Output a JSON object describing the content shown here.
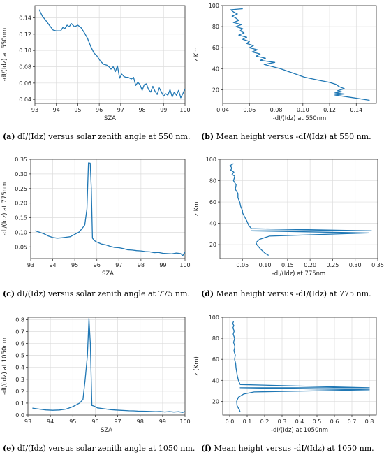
{
  "figure": {
    "captions": [
      {
        "letter": "(a)",
        "text": " dI/(Idz) versus solar zenith angle at 550 nm."
      },
      {
        "letter": "(b)",
        "text": " Mean height versus -dI/(Idz) at 550 nm."
      },
      {
        "letter": "(c)",
        "text": " dI/(Idz) versus solar zenith angle at 775 nm."
      },
      {
        "letter": "(d)",
        "text": " Mean height versus -dI/(Idz) at 775 nm."
      },
      {
        "letter": "(e)",
        "text": " dI/(Idz) versus solar zenith angle at 1050 nm."
      },
      {
        "letter": "(f)",
        "text": " Mean height versus -dI/(Idz) at 1050 nm."
      }
    ],
    "line_color": "#1f77b4"
  },
  "chart_data": [
    {
      "type": "line",
      "xlabel": "SZA",
      "ylabel": "-dI/(Idz) at 550nm",
      "xlim": [
        93,
        100
      ],
      "ylim": [
        0.035,
        0.155
      ],
      "xticks": [
        93,
        94,
        95,
        96,
        97,
        98,
        99,
        100
      ],
      "yticks": [
        0.04,
        0.06,
        0.08,
        0.1,
        0.12,
        0.14
      ],
      "ytick_labels": [
        "0.04",
        "0.06",
        "0.08",
        "0.10",
        "0.12",
        "0.14"
      ],
      "grid": true,
      "series": [
        {
          "x": [
            93.2,
            93.35,
            93.5,
            93.7,
            93.85,
            94.0,
            94.2,
            94.3,
            94.4,
            94.5,
            94.6,
            94.7,
            94.85,
            95.0,
            95.15,
            95.3,
            95.45,
            95.6,
            95.75,
            95.9,
            96.05,
            96.2,
            96.35,
            96.45,
            96.55,
            96.65,
            96.75,
            96.85,
            96.95,
            97.05,
            97.15,
            97.25,
            97.35,
            97.5,
            97.6,
            97.7,
            97.8,
            97.9,
            98.0,
            98.1,
            98.2,
            98.3,
            98.4,
            98.5,
            98.6,
            98.7,
            98.8,
            98.9,
            99.0,
            99.1,
            99.2,
            99.3,
            99.4,
            99.5,
            99.6,
            99.7,
            99.8,
            99.9,
            100.0
          ],
          "y": [
            0.15,
            0.142,
            0.137,
            0.13,
            0.125,
            0.124,
            0.124,
            0.128,
            0.127,
            0.131,
            0.129,
            0.133,
            0.129,
            0.131,
            0.128,
            0.122,
            0.115,
            0.105,
            0.097,
            0.093,
            0.087,
            0.083,
            0.082,
            0.08,
            0.077,
            0.08,
            0.074,
            0.081,
            0.066,
            0.071,
            0.068,
            0.067,
            0.067,
            0.065,
            0.067,
            0.057,
            0.061,
            0.058,
            0.051,
            0.058,
            0.059,
            0.052,
            0.049,
            0.056,
            0.05,
            0.046,
            0.054,
            0.049,
            0.044,
            0.047,
            0.045,
            0.052,
            0.043,
            0.049,
            0.045,
            0.051,
            0.042,
            0.047,
            0.053
          ]
        }
      ]
    },
    {
      "type": "line",
      "xlabel": "-dI/(Idz) at 550nm",
      "ylabel": "z Km",
      "xlim": [
        0.04,
        0.155
      ],
      "ylim": [
        7,
        100
      ],
      "xticks": [
        0.04,
        0.06,
        0.08,
        0.1,
        0.12,
        0.14
      ],
      "xtick_labels": [
        "0.04",
        "0.06",
        "0.08",
        "0.10",
        "0.12",
        "0.14"
      ],
      "yticks": [
        20,
        40,
        60,
        80,
        100
      ],
      "grid": true,
      "series": [
        {
          "x": [
            0.055,
            0.046,
            0.048,
            0.051,
            0.047,
            0.05,
            0.052,
            0.048,
            0.054,
            0.05,
            0.055,
            0.053,
            0.056,
            0.052,
            0.058,
            0.055,
            0.06,
            0.058,
            0.063,
            0.06,
            0.066,
            0.062,
            0.068,
            0.065,
            0.072,
            0.068,
            0.079,
            0.071,
            0.077,
            0.083,
            0.092,
            0.101,
            0.112,
            0.12,
            0.125,
            0.127,
            0.131,
            0.126,
            0.129,
            0.124,
            0.131,
            0.124,
            0.14,
            0.15
          ],
          "y": [
            97,
            96,
            94,
            92,
            90,
            88,
            86,
            84,
            82,
            80,
            78,
            76,
            74,
            72,
            70,
            68,
            66,
            64,
            62,
            60,
            58,
            56,
            54,
            52,
            50,
            48,
            46,
            44,
            42,
            40,
            36,
            32,
            29,
            27,
            25,
            23,
            21,
            19,
            18,
            17,
            16,
            15,
            12,
            10
          ]
        }
      ]
    },
    {
      "type": "line",
      "xlabel": "SZA",
      "ylabel": "-dI/(Idz) at 775nm",
      "xlim": [
        93,
        100
      ],
      "ylim": [
        0.01,
        0.35
      ],
      "xticks": [
        93,
        94,
        95,
        96,
        97,
        98,
        99,
        100
      ],
      "yticks": [
        0.05,
        0.1,
        0.15,
        0.2,
        0.25,
        0.3,
        0.35
      ],
      "ytick_labels": [
        "0.05",
        "0.10",
        "0.15",
        "0.20",
        "0.25",
        "0.30",
        "0.35"
      ],
      "grid": true,
      "series": [
        {
          "x": [
            93.2,
            93.4,
            93.6,
            93.8,
            94.0,
            94.2,
            94.4,
            94.6,
            94.8,
            95.0,
            95.2,
            95.35,
            95.45,
            95.55,
            95.62,
            95.7,
            95.75,
            95.8,
            95.85,
            95.95,
            96.05,
            96.2,
            96.4,
            96.6,
            96.8,
            97.0,
            97.2,
            97.4,
            97.6,
            97.8,
            98.0,
            98.2,
            98.4,
            98.6,
            98.8,
            99.0,
            99.2,
            99.4,
            99.6,
            99.8,
            99.9,
            100.0
          ],
          "y": [
            0.105,
            0.1,
            0.095,
            0.087,
            0.082,
            0.08,
            0.081,
            0.083,
            0.085,
            0.093,
            0.101,
            0.115,
            0.125,
            0.18,
            0.338,
            0.337,
            0.25,
            0.08,
            0.075,
            0.068,
            0.065,
            0.06,
            0.057,
            0.052,
            0.048,
            0.047,
            0.044,
            0.04,
            0.039,
            0.037,
            0.036,
            0.034,
            0.033,
            0.03,
            0.031,
            0.028,
            0.027,
            0.026,
            0.029,
            0.027,
            0.02,
            0.033
          ]
        }
      ]
    },
    {
      "type": "line",
      "xlabel": "-dI/(Idz) at 775nm",
      "ylabel": "z Km",
      "xlim": [
        0,
        0.35
      ],
      "ylim": [
        7,
        100
      ],
      "xticks": [
        0.05,
        0.1,
        0.15,
        0.2,
        0.25,
        0.3,
        0.35
      ],
      "xtick_labels": [
        "0.05",
        "0.10",
        "0.15",
        "0.20",
        "0.25",
        "0.30",
        "0.35"
      ],
      "yticks": [
        20,
        40,
        60,
        80,
        100
      ],
      "grid": true,
      "series": [
        {
          "x": [
            0.03,
            0.022,
            0.027,
            0.024,
            0.031,
            0.027,
            0.033,
            0.03,
            0.036,
            0.034,
            0.04,
            0.04,
            0.044,
            0.046,
            0.05,
            0.05,
            0.055,
            0.06,
            0.064,
            0.07,
            0.336,
            0.07,
            0.33,
            0.11,
            0.088,
            0.08,
            0.082,
            0.09,
            0.1,
            0.108
          ],
          "y": [
            96,
            94,
            92,
            90,
            88,
            86,
            84,
            80,
            76,
            72,
            68,
            64,
            60,
            56,
            52,
            50,
            46,
            42,
            38,
            35,
            33,
            33,
            31,
            28,
            25,
            22,
            20,
            16,
            12,
            10
          ]
        }
      ]
    },
    {
      "type": "line",
      "xlabel": "SZA",
      "ylabel": "-dI/(Idz) at 1050nm",
      "xlim": [
        93,
        100
      ],
      "ylim": [
        0,
        0.82
      ],
      "xticks": [
        93,
        94,
        95,
        96,
        97,
        98,
        99,
        100
      ],
      "yticks": [
        0.0,
        0.1,
        0.2,
        0.3,
        0.4,
        0.5,
        0.6,
        0.7,
        0.8
      ],
      "ytick_labels": [
        "0.0",
        "0.1",
        "0.2",
        "0.3",
        "0.4",
        "0.5",
        "0.6",
        "0.7",
        "0.8"
      ],
      "grid": true,
      "series": [
        {
          "x": [
            93.2,
            93.5,
            93.8,
            94.1,
            94.4,
            94.7,
            95.0,
            95.3,
            95.45,
            95.55,
            95.65,
            95.72,
            95.78,
            95.85,
            95.95,
            96.1,
            96.3,
            96.5,
            96.7,
            96.9,
            97.1,
            97.3,
            97.5,
            97.7,
            97.9,
            98.1,
            98.3,
            98.5,
            98.7,
            98.9,
            99.1,
            99.3,
            99.5,
            99.7,
            99.9,
            100.0
          ],
          "y": [
            0.058,
            0.05,
            0.043,
            0.04,
            0.042,
            0.05,
            0.07,
            0.1,
            0.13,
            0.3,
            0.5,
            0.81,
            0.6,
            0.08,
            0.075,
            0.06,
            0.055,
            0.05,
            0.045,
            0.042,
            0.04,
            0.038,
            0.036,
            0.035,
            0.033,
            0.032,
            0.031,
            0.03,
            0.028,
            0.03,
            0.026,
            0.029,
            0.025,
            0.028,
            0.022,
            0.03
          ]
        }
      ]
    },
    {
      "type": "line",
      "xlabel": "-dI/(Idz) at 1050nm",
      "ylabel": "z (Km)",
      "xlim": [
        -0.04,
        0.84
      ],
      "ylim": [
        7,
        100
      ],
      "xticks": [
        0.0,
        0.1,
        0.2,
        0.3,
        0.4,
        0.5,
        0.6,
        0.7,
        0.8
      ],
      "xtick_labels": [
        "0.0",
        "0.1",
        "0.2",
        "0.3",
        "0.4",
        "0.5",
        "0.6",
        "0.7",
        "0.8"
      ],
      "yticks": [
        20,
        40,
        60,
        80,
        100
      ],
      "grid": true,
      "series": [
        {
          "x": [
            0.022,
            0.017,
            0.024,
            0.018,
            0.026,
            0.02,
            0.028,
            0.022,
            0.03,
            0.024,
            0.032,
            0.028,
            0.034,
            0.036,
            0.04,
            0.044,
            0.05,
            0.06,
            0.8,
            0.06,
            0.8,
            0.14,
            0.08,
            0.05,
            0.04,
            0.042,
            0.055,
            0.06
          ],
          "y": [
            96,
            94,
            92,
            90,
            87,
            84,
            80,
            76,
            72,
            68,
            64,
            60,
            56,
            52,
            48,
            44,
            40,
            36,
            33,
            33,
            31,
            29,
            27,
            24,
            20,
            16,
            12,
            10
          ]
        }
      ]
    }
  ]
}
